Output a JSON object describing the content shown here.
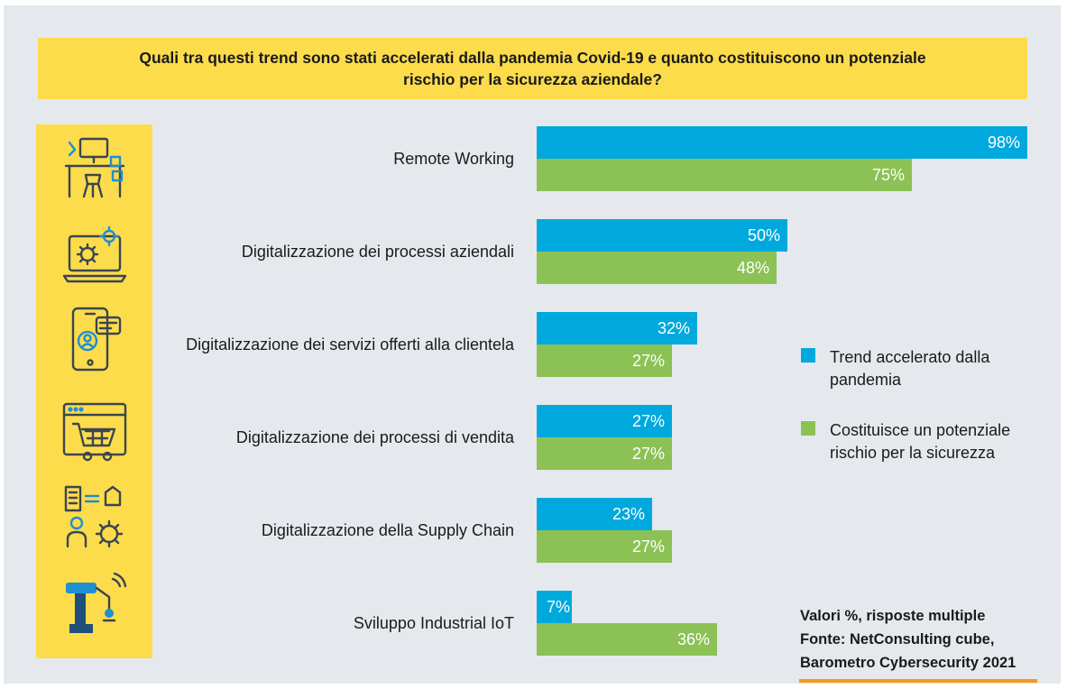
{
  "title": "Quali tra questi trend sono stati accelerati dalla pandemia Covid-19 e quanto costituiscono un potenziale rischio per la sicurezza aziendale?",
  "chart_data": {
    "type": "bar",
    "orientation": "horizontal",
    "categories": [
      "Remote Working",
      "Digitalizzazione dei processi aziendali",
      "Digitalizzazione dei servizi offerti alla clientela",
      "Digitalizzazione dei processi di vendita",
      "Digitalizzazione della Supply Chain",
      "Sviluppo Industrial IoT"
    ],
    "series": [
      {
        "name": "Trend accelerato dalla pandemia",
        "color": "#00a9dd",
        "values": [
          98,
          50,
          32,
          27,
          23,
          7
        ]
      },
      {
        "name": "Costituisce un potenziale rischio per la sicurezza",
        "color": "#8cc155",
        "values": [
          75,
          48,
          27,
          27,
          27,
          36
        ]
      }
    ],
    "value_labels": {
      "trend": [
        "98%",
        "50%",
        "32%",
        "27%",
        "23%",
        "7%"
      ],
      "risk": [
        "75%",
        "48%",
        "27%",
        "27%",
        "27%",
        "36%"
      ]
    },
    "xlim": [
      0,
      100
    ],
    "grid": false,
    "legend_position": "right"
  },
  "icons": [
    "desk-workstation-icon",
    "laptop-gear-icon",
    "smartphone-chat-icon",
    "web-cart-icon",
    "supply-chain-icon",
    "robot-arm-icon"
  ],
  "note": {
    "line1": "Valori %, risposte multiple",
    "line2": "Fonte: NetConsulting cube,",
    "line3": "Barometro Cybersecurity 2021"
  },
  "colors": {
    "background": "#e5e9ed",
    "accent_yellow": "#fddc4c",
    "trend_blue": "#00a9dd",
    "risk_green": "#8cc155",
    "note_rule": "#f39a1f",
    "icon_stroke": "#3a4650",
    "icon_blue": "#1f8fd1"
  }
}
